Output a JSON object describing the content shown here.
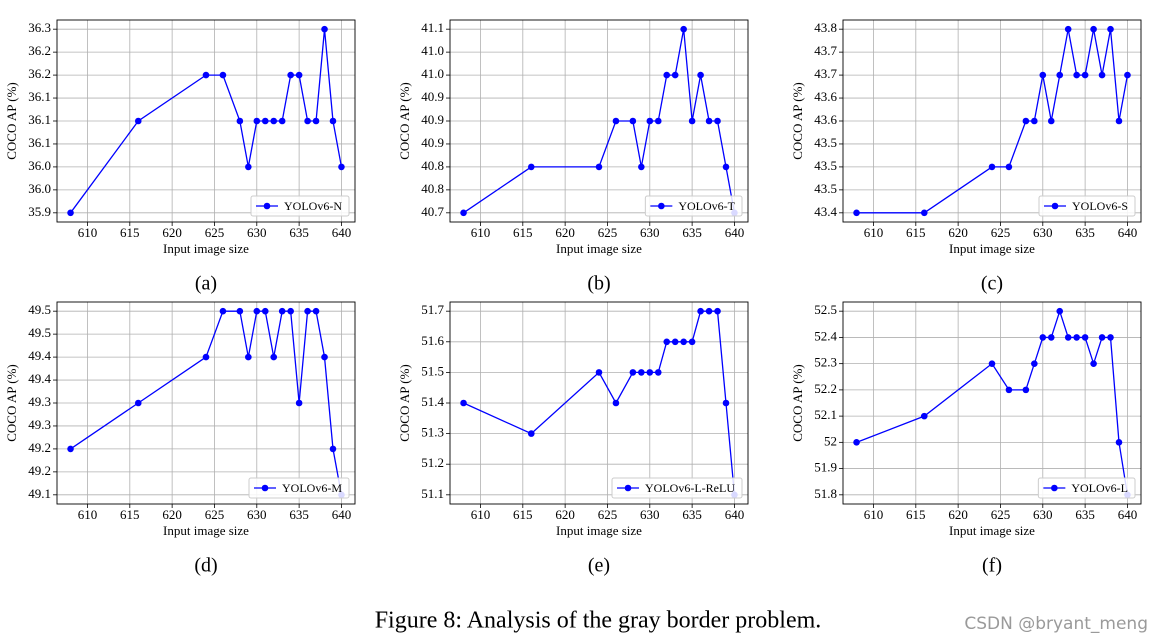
{
  "chart_data": [
    {
      "type": "line",
      "subcaption": "(a)",
      "x_label": "Input image size",
      "y_label": "COCO AP (%)",
      "x": [
        608,
        616,
        624,
        626,
        628,
        629,
        630,
        631,
        632,
        633,
        634,
        635,
        636,
        637,
        638,
        639,
        640
      ],
      "series": [
        {
          "name": "YOLOv6-N",
          "color": "#0000ff",
          "values": [
            35.9,
            36.1,
            36.2,
            36.2,
            36.1,
            36.0,
            36.1,
            36.1,
            36.1,
            36.1,
            36.2,
            36.2,
            36.1,
            36.1,
            36.3,
            36.1,
            36.0
          ]
        }
      ],
      "xlim": [
        606.4,
        641.6
      ],
      "xticks": [
        610,
        615,
        620,
        625,
        630,
        635,
        640
      ],
      "ylim": [
        35.88,
        36.32
      ],
      "yticks": [
        35.9,
        {
          "value": 35.95,
          "label": "36.0"
        },
        {
          "value": 36.0,
          "label": "36.0"
        },
        {
          "value": 36.05,
          "label": "36.1"
        },
        36.1,
        {
          "value": 36.15,
          "label": "36.1"
        },
        36.2,
        {
          "value": 36.25,
          "label": "36.2"
        },
        36.3
      ],
      "grid": true,
      "legend": "lower right"
    },
    {
      "type": "line",
      "subcaption": "(b)",
      "x_label": "Input image size",
      "y_label": "COCO AP (%)",
      "x": [
        608,
        616,
        624,
        626,
        628,
        629,
        630,
        631,
        632,
        633,
        634,
        635,
        636,
        637,
        638,
        639,
        640
      ],
      "series": [
        {
          "name": "YOLOv6-T",
          "color": "#0000ff",
          "values": [
            40.7,
            40.8,
            40.8,
            40.9,
            40.9,
            40.8,
            40.9,
            40.9,
            41.0,
            41.0,
            41.1,
            40.9,
            41.0,
            40.9,
            40.9,
            40.8,
            40.7
          ]
        }
      ],
      "xlim": [
        606.4,
        641.6
      ],
      "xticks": [
        610,
        615,
        620,
        625,
        630,
        635,
        640
      ],
      "ylim": [
        40.68,
        41.12
      ],
      "yticks": [
        40.7,
        {
          "value": 40.75,
          "label": "40.8"
        },
        40.8,
        {
          "value": 40.85,
          "label": "40.9"
        },
        40.9,
        {
          "value": 40.95,
          "label": "40.9"
        },
        {
          "value": 41.0,
          "label": "41.0"
        },
        {
          "value": 41.05,
          "label": "41.0"
        },
        41.1
      ],
      "grid": true,
      "legend": "lower right"
    },
    {
      "type": "line",
      "subcaption": "(c)",
      "x_label": "Input image size",
      "y_label": "COCO AP (%)",
      "x": [
        608,
        616,
        624,
        626,
        628,
        629,
        630,
        631,
        632,
        633,
        634,
        635,
        636,
        637,
        638,
        639,
        640
      ],
      "series": [
        {
          "name": "YOLOv6-S",
          "color": "#0000ff",
          "values": [
            43.4,
            43.4,
            43.5,
            43.5,
            43.6,
            43.6,
            43.7,
            43.6,
            43.7,
            43.8,
            43.7,
            43.7,
            43.8,
            43.7,
            43.8,
            43.6,
            43.7
          ]
        }
      ],
      "xlim": [
        606.4,
        641.6
      ],
      "xticks": [
        610,
        615,
        620,
        625,
        630,
        635,
        640
      ],
      "ylim": [
        43.38,
        43.82
      ],
      "yticks": [
        43.4,
        {
          "value": 43.45,
          "label": "43.5"
        },
        43.5,
        {
          "value": 43.55,
          "label": "43.5"
        },
        43.6,
        {
          "value": 43.65,
          "label": "43.6"
        },
        43.7,
        {
          "value": 43.75,
          "label": "43.7"
        },
        43.8
      ],
      "grid": true,
      "legend": "lower right"
    },
    {
      "type": "line",
      "subcaption": "(d)",
      "x_label": "Input image size",
      "y_label": "COCO AP (%)",
      "x": [
        608,
        616,
        624,
        626,
        628,
        629,
        630,
        631,
        632,
        633,
        634,
        635,
        636,
        637,
        638,
        639,
        640
      ],
      "series": [
        {
          "name": "YOLOv6-M",
          "color": "#0000ff",
          "values": [
            49.2,
            49.3,
            49.4,
            49.5,
            49.5,
            49.4,
            49.5,
            49.5,
            49.4,
            49.5,
            49.5,
            49.3,
            49.5,
            49.5,
            49.4,
            49.2,
            49.1
          ]
        }
      ],
      "xlim": [
        606.4,
        641.6
      ],
      "xticks": [
        610,
        615,
        620,
        625,
        630,
        635,
        640
      ],
      "ylim": [
        49.08,
        49.52
      ],
      "yticks": [
        49.1,
        {
          "value": 49.15,
          "label": "49.2"
        },
        49.2,
        {
          "value": 49.25,
          "label": "49.3"
        },
        49.3,
        {
          "value": 49.35,
          "label": "49.4"
        },
        49.4,
        {
          "value": 49.45,
          "label": "49.5"
        },
        49.5
      ],
      "grid": true,
      "legend": "lower right"
    },
    {
      "type": "line",
      "subcaption": "(e)",
      "x_label": "Input image size",
      "y_label": "COCO AP (%)",
      "x": [
        608,
        616,
        624,
        626,
        628,
        629,
        630,
        631,
        632,
        633,
        634,
        635,
        636,
        637,
        638,
        639,
        640
      ],
      "series": [
        {
          "name": "YOLOv6-L-ReLU",
          "color": "#0000ff",
          "values": [
            51.4,
            51.3,
            51.5,
            51.4,
            51.5,
            51.5,
            51.5,
            51.5,
            51.6,
            51.6,
            51.6,
            51.6,
            51.7,
            51.7,
            51.7,
            51.4,
            51.1
          ]
        }
      ],
      "xlim": [
        606.4,
        641.6
      ],
      "xticks": [
        610,
        615,
        620,
        625,
        630,
        635,
        640
      ],
      "ylim": [
        51.07,
        51.73
      ],
      "yticks": [
        51.1,
        51.2,
        51.3,
        51.4,
        51.5,
        51.6,
        51.7
      ],
      "grid": true,
      "legend": "lower right"
    },
    {
      "type": "line",
      "subcaption": "(f)",
      "x_label": "Input image size",
      "y_label": "COCO AP (%)",
      "x": [
        608,
        616,
        624,
        626,
        628,
        629,
        630,
        631,
        632,
        633,
        634,
        635,
        636,
        637,
        638,
        639,
        640
      ],
      "series": [
        {
          "name": "YOLOv6-L",
          "color": "#0000ff",
          "values": [
            52.0,
            52.1,
            52.3,
            52.2,
            52.2,
            52.3,
            52.4,
            52.4,
            52.5,
            52.4,
            52.4,
            52.4,
            52.3,
            52.4,
            52.4,
            52.0,
            51.8
          ]
        }
      ],
      "xlim": [
        606.4,
        641.6
      ],
      "xticks": [
        610,
        615,
        620,
        625,
        630,
        635,
        640
      ],
      "ylim": [
        51.765,
        52.535
      ],
      "yticks": [
        51.8,
        51.9,
        52.0,
        52.1,
        52.2,
        52.3,
        52.4,
        52.5
      ],
      "grid": true,
      "legend": "lower right"
    }
  ],
  "figure_caption": "Figure 8: Analysis of the gray border problem.",
  "watermark": "CSDN @bryant_meng"
}
